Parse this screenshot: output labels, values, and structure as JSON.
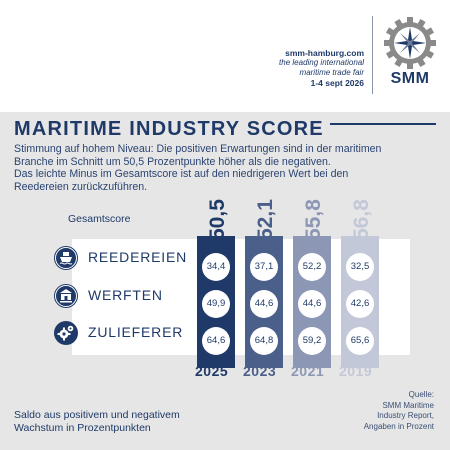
{
  "header": {
    "url": "smm-hamburg.com",
    "tagline_1": "the leading international",
    "tagline_2": "maritime trade fair",
    "dates": "1-4 sept 2026",
    "logo_text": "SMM"
  },
  "title": "MARITIME INDUSTRY SCORE",
  "intro": {
    "line1": "Stimmung auf hohem Niveau: Die positiven Erwartungen sind in der maritimen",
    "line2": "Branche im Schnitt um 50,5 Prozentpunkte höher als die negativen.",
    "line3": "Das leichte Minus im Gesamtscore ist auf den niedrigeren Wert bei den",
    "line4": "Reedereien zurückzuführen."
  },
  "total_label": "Gesamtscore",
  "footer": {
    "saldo_1": "Saldo aus positivem und negativem",
    "saldo_2": "Wachstum in Prozentpunkten",
    "source_1": "Quelle:",
    "source_2": "SMM Maritime",
    "source_3": "Industry Report,",
    "source_4": "Angaben in Prozent"
  },
  "icons": [
    "ship-icon",
    "shipyard-icon",
    "gears-icon"
  ],
  "colors": {
    "2025": "#1f3a68",
    "2023": "#4a5f8a",
    "2021": "#8c97b5",
    "2019": "#c3c8d9"
  },
  "chart_data": {
    "type": "table",
    "categories": [
      "REEDEREIEN",
      "WERFTEN",
      "ZULIEFERER"
    ],
    "years": [
      "2025",
      "2023",
      "2021",
      "2019"
    ],
    "totals": [
      "50,5",
      "52,1",
      "55,8",
      "56,8"
    ],
    "series": [
      {
        "name": "2025",
        "values": [
          "34,4",
          "49,9",
          "64,6"
        ]
      },
      {
        "name": "2023",
        "values": [
          "37,1",
          "44,6",
          "64,8"
        ]
      },
      {
        "name": "2021",
        "values": [
          "52,2",
          "44,6",
          "59,2"
        ]
      },
      {
        "name": "2019",
        "values": [
          "32,5",
          "42,6",
          "65,6"
        ]
      }
    ]
  }
}
